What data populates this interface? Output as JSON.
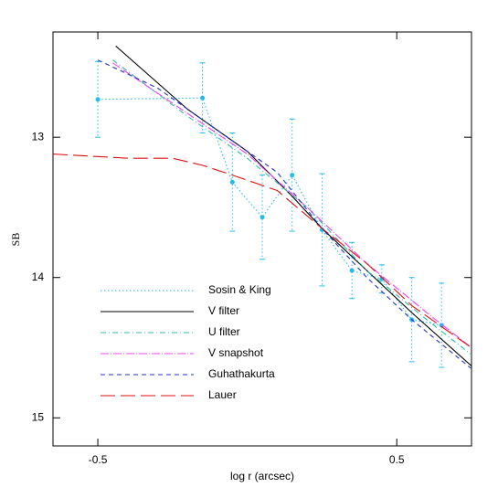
{
  "chart_data": {
    "type": "line",
    "xlabel": "log r (arcsec)",
    "ylabel": "SB",
    "xlim": [
      -0.65,
      0.75
    ],
    "ylim": [
      12.25,
      15.2
    ],
    "y_inverted": true,
    "xticks": [
      -0.5,
      0.5
    ],
    "yticks": [
      13,
      14,
      15
    ],
    "series": [
      {
        "name": "Sosin & King",
        "color": "#22bbee",
        "style": "dotted",
        "markers": true,
        "x": [
          -0.5,
          -0.15,
          -0.05,
          0.05,
          0.15,
          0.25,
          0.35,
          0.45,
          0.55,
          0.65
        ],
        "values": [
          12.73,
          12.72,
          13.32,
          13.57,
          13.27,
          13.66,
          13.95,
          14.01,
          14.3,
          14.34
        ],
        "errors": [
          0.27,
          0.25,
          0.35,
          0.3,
          0.4,
          0.4,
          0.2,
          0.1,
          0.3,
          0.3
        ]
      },
      {
        "name": "V filter",
        "color": "#000000",
        "style": "solid",
        "x": [
          -0.44,
          -0.2,
          0,
          0.15,
          0.25,
          0.4,
          0.55,
          0.75
        ],
        "values": [
          12.35,
          12.8,
          13.1,
          13.42,
          13.65,
          13.95,
          14.25,
          14.63
        ]
      },
      {
        "name": "U filter",
        "color": "#33bbaa",
        "style": "dashdot",
        "x": [
          -0.45,
          -0.2,
          0,
          0.2,
          0.4,
          0.6,
          0.75
        ],
        "values": [
          12.45,
          12.85,
          13.15,
          13.5,
          13.95,
          14.3,
          14.55
        ]
      },
      {
        "name": "V snapshot",
        "color": "#ee44ee",
        "style": "dashdotlong",
        "x": [
          -0.45,
          -0.2,
          0,
          0.2,
          0.4,
          0.6,
          0.75
        ],
        "values": [
          12.47,
          12.83,
          13.12,
          13.5,
          13.9,
          14.25,
          14.5
        ]
      },
      {
        "name": "Guhathakurta",
        "color": "#2233cc",
        "style": "dashed",
        "x": [
          -0.5,
          -0.3,
          -0.1,
          0.1,
          0.25,
          0.4,
          0.55,
          0.75
        ],
        "values": [
          12.45,
          12.65,
          12.95,
          13.25,
          13.65,
          14.0,
          14.3,
          14.65
        ]
      },
      {
        "name": "Lauer",
        "color": "#dd1111",
        "style": "longdash",
        "x": [
          -0.65,
          -0.4,
          -0.25,
          -0.15,
          -0.05,
          0.1,
          0.25,
          0.4,
          0.55,
          0.65,
          0.75
        ],
        "values": [
          13.12,
          13.15,
          13.15,
          13.2,
          13.27,
          13.38,
          13.65,
          13.9,
          14.2,
          14.35,
          14.5
        ]
      }
    ]
  }
}
